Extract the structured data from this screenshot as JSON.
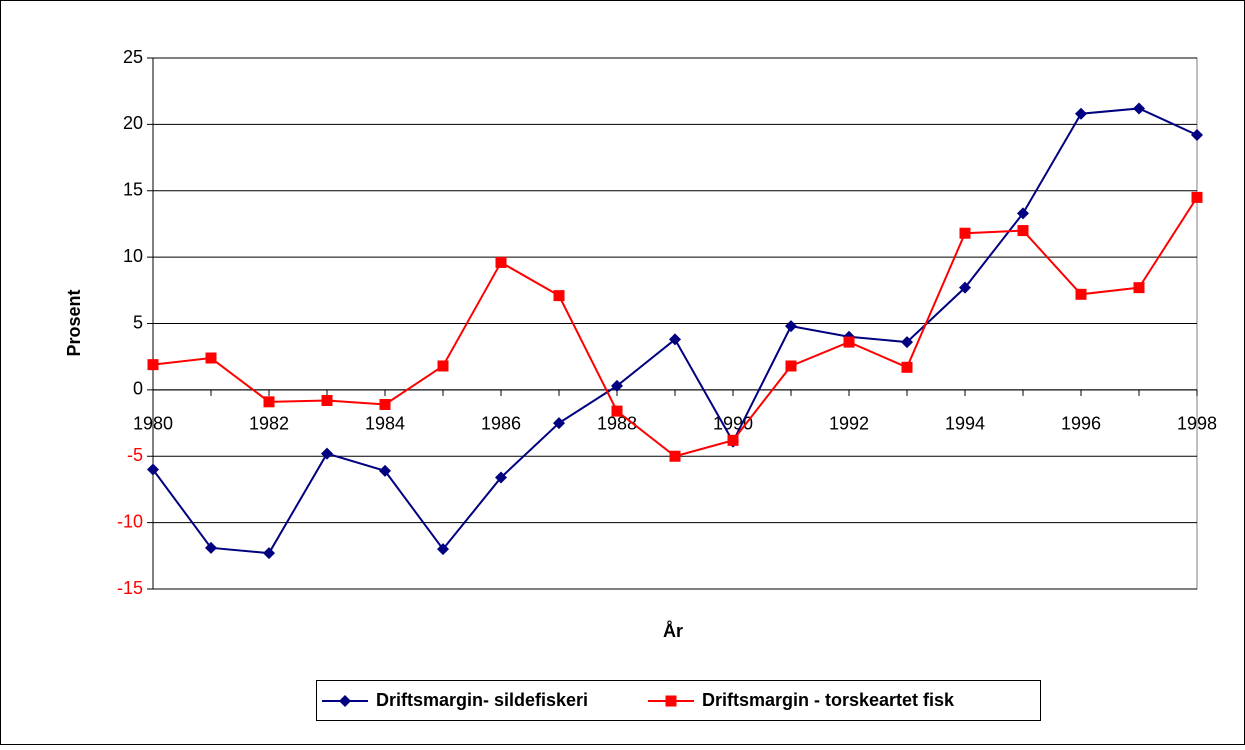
{
  "chart_data": {
    "type": "line",
    "y_label": "Prosent",
    "x_label": "År",
    "x": [
      1980,
      1981,
      1982,
      1983,
      1984,
      1985,
      1986,
      1987,
      1988,
      1989,
      1990,
      1991,
      1992,
      1993,
      1994,
      1995,
      1996,
      1997,
      1998
    ],
    "series": [
      {
        "name": "Driftsmargin- sildefiskeri",
        "color": "#000080",
        "marker": "diamond",
        "values": [
          -6.0,
          -11.9,
          -12.3,
          -4.8,
          -6.1,
          -12.0,
          -6.6,
          -2.5,
          0.3,
          3.8,
          -3.9,
          4.8,
          4.0,
          3.6,
          7.7,
          13.3,
          20.8,
          21.2,
          19.2
        ]
      },
      {
        "name": "Driftsmargin - torskeartet fisk",
        "color": "#ff0000",
        "marker": "square",
        "values": [
          1.9,
          2.4,
          -0.9,
          -0.8,
          -1.1,
          1.8,
          9.6,
          7.1,
          -1.6,
          -5.0,
          -3.8,
          1.8,
          3.6,
          1.7,
          11.8,
          12.0,
          7.2,
          7.7,
          14.5
        ]
      }
    ],
    "xlim": [
      1980,
      1998
    ],
    "xticks": [
      1980,
      1982,
      1984,
      1986,
      1988,
      1990,
      1992,
      1994,
      1996,
      1998
    ],
    "ylim": [
      -15,
      25
    ],
    "yticks": [
      -15,
      -10,
      -5,
      0,
      5,
      10,
      15,
      20,
      25
    ],
    "grid": true,
    "negative_tick_color": "#ff0000",
    "legend": "bottom"
  }
}
